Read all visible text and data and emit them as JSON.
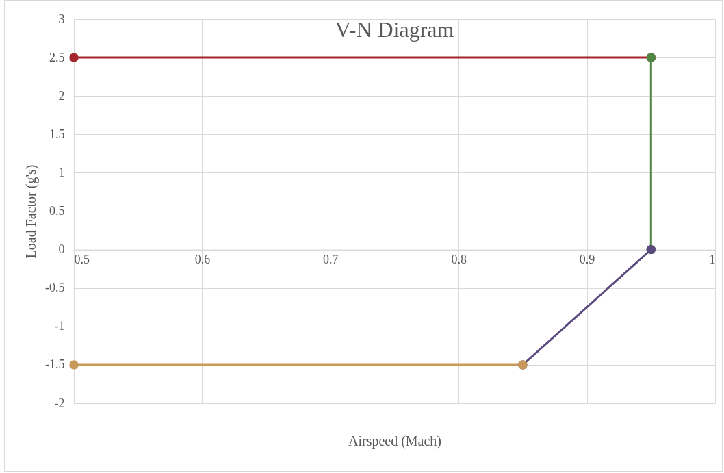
{
  "chart_data": {
    "type": "line",
    "title": "V-N Diagram",
    "xlabel": "Airspeed (Mach)",
    "ylabel": "Load Factor (g's)",
    "xlim": [
      0.5,
      1
    ],
    "xticks": [
      0.5,
      0.6,
      0.7,
      0.8,
      0.9,
      1
    ],
    "ylim": [
      -2,
      3
    ],
    "yticks": [
      -2,
      -1.5,
      -1,
      -0.5,
      0,
      0.5,
      1,
      1.5,
      2,
      2.5,
      3
    ],
    "grid": true,
    "marker": "circle",
    "line_style": "solid",
    "series": [
      {
        "color": "#a4262c",
        "x": [
          0.5,
          0.95
        ],
        "values": [
          2.5,
          2.5
        ]
      },
      {
        "color": "#4e8542",
        "x": [
          0.95,
          0.95
        ],
        "values": [
          2.5,
          0
        ]
      },
      {
        "color": "#5b4a7e",
        "x": [
          0.95,
          0.85
        ],
        "values": [
          0,
          -1.5
        ]
      },
      {
        "color": "#c9995a",
        "x": [
          0.85,
          0.5
        ],
        "values": [
          -1.5,
          -1.5
        ]
      }
    ]
  }
}
